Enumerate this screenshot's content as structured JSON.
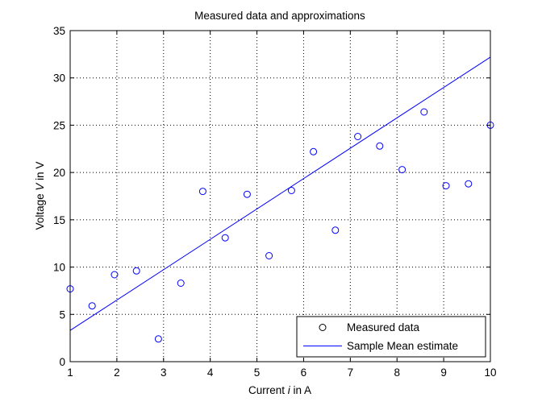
{
  "chart_data": {
    "type": "scatter",
    "title": "Measured data and approximations",
    "xlabel": {
      "prefix": "Current ",
      "var": "i",
      "suffix": " in A"
    },
    "ylabel": {
      "prefix": "Voltage ",
      "var": "V",
      "suffix": " in V"
    },
    "xlim": [
      1,
      10
    ],
    "ylim": [
      0,
      35
    ],
    "xticks": [
      1,
      2,
      3,
      4,
      5,
      6,
      7,
      8,
      9,
      10
    ],
    "yticks": [
      0,
      5,
      10,
      15,
      20,
      25,
      30,
      35
    ],
    "grid": true,
    "grid_style": "dotted",
    "legend_position": "bottom-right",
    "series": [
      {
        "name": "Measured data",
        "kind": "markers",
        "marker": "open-circle",
        "color": "#0000ff",
        "x": [
          1.0,
          1.47,
          1.95,
          2.42,
          2.89,
          3.37,
          3.84,
          4.32,
          4.79,
          5.26,
          5.74,
          6.21,
          6.68,
          7.16,
          7.63,
          8.11,
          8.58,
          9.05,
          9.53,
          10.0
        ],
        "y": [
          7.7,
          5.9,
          9.2,
          9.6,
          2.4,
          8.3,
          18.0,
          13.1,
          17.7,
          11.2,
          18.1,
          22.2,
          13.9,
          23.8,
          22.8,
          20.3,
          26.4,
          18.6,
          18.8,
          25.0
        ]
      },
      {
        "name": "Sample Mean estimate",
        "kind": "line",
        "color": "#0000ff",
        "x": [
          1,
          10
        ],
        "y": [
          3.3,
          32.2
        ]
      }
    ]
  }
}
